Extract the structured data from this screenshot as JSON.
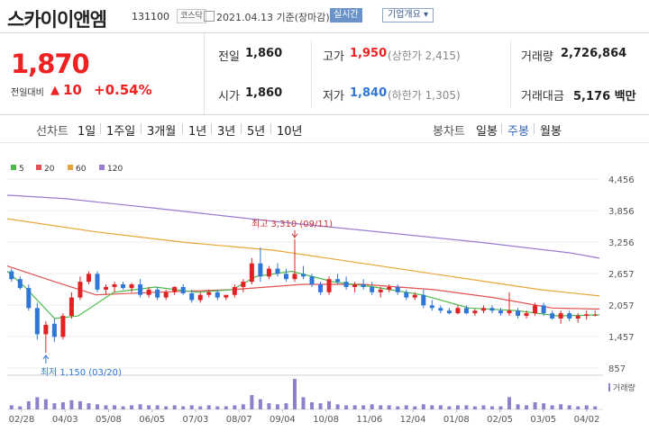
{
  "header": {
    "name": "스카이이앤엠",
    "code": "131100",
    "market": "코스닥",
    "date": "2021.04.13 기준(장마감)",
    "realtime_label": "실시간",
    "company_info_label": "기업개요 ▾"
  },
  "quote": {
    "price": "1,870",
    "change_label": "전일대비",
    "change_arrow": "▲",
    "change_value": "10",
    "change_pct": "+0.54%",
    "prev_close_label": "전일",
    "prev_close": "1,860",
    "open_label": "시가",
    "open": "1,860",
    "high_label": "고가",
    "high": "1,950",
    "upper_limit": "(상한가 2,415)",
    "low_label": "저가",
    "low": "1,840",
    "lower_limit": "(하한가 1,305)",
    "volume_label": "거래량",
    "volume": "2,726,864",
    "amount_label": "거래대금",
    "amount": "5,176 백만"
  },
  "period_tabs": {
    "label": "선차트",
    "items": [
      "1일",
      "1주일",
      "3개월",
      "1년",
      "3년",
      "5년",
      "10년"
    ]
  },
  "candle_tabs": {
    "label": "봉차트",
    "items": [
      "일봉",
      "주봉",
      "월봉"
    ],
    "selected": "주봉"
  },
  "colors": {
    "up": "#e02222",
    "down": "#2f77d6",
    "accent": "#6a93c9",
    "ma5": "#4cb94a",
    "ma20": "#e05050",
    "ma60": "#e8a636",
    "ma120": "#9a7bd0"
  },
  "chart_data": {
    "type": "candlestick",
    "legend": [
      {
        "name": "5",
        "color": "#4cb94a"
      },
      {
        "name": "20",
        "color": "#e05050"
      },
      {
        "name": "60",
        "color": "#e8a636"
      },
      {
        "name": "120",
        "color": "#9a7bd0"
      }
    ],
    "yticks": [
      "4,456",
      "3,856",
      "3,256",
      "2,657",
      "2,057",
      "1,457",
      "857"
    ],
    "ylim": [
      857,
      4456
    ],
    "xticks": [
      "02/28",
      "04/03",
      "05/08",
      "06/05",
      "07/03",
      "08/07",
      "09/04",
      "10/08",
      "11/06",
      "12/04",
      "01/08",
      "02/05",
      "03/05",
      "04/02"
    ],
    "annotations": {
      "high": "최고 3,310 (09/11)",
      "low": "최저 1,150 (03/20)"
    },
    "volume_label": "거래량",
    "candles": [
      [
        2700,
        2750,
        2500,
        2550
      ],
      [
        2550,
        2600,
        2350,
        2380
      ],
      [
        2380,
        2450,
        1950,
        2000
      ],
      [
        2000,
        2100,
        1400,
        1500
      ],
      [
        1500,
        1750,
        1150,
        1680
      ],
      [
        1700,
        1800,
        1350,
        1450
      ],
      [
        1450,
        1900,
        1400,
        1850
      ],
      [
        1850,
        2300,
        1800,
        2200
      ],
      [
        2200,
        2600,
        2150,
        2500
      ],
      [
        2500,
        2700,
        2450,
        2650
      ],
      [
        2650,
        2700,
        2300,
        2350
      ],
      [
        2350,
        2450,
        2250,
        2400
      ],
      [
        2400,
        2500,
        2300,
        2450
      ],
      [
        2450,
        2500,
        2350,
        2380
      ],
      [
        2380,
        2480,
        2300,
        2450
      ],
      [
        2450,
        2550,
        2200,
        2250
      ],
      [
        2250,
        2400,
        2200,
        2350
      ],
      [
        2350,
        2400,
        2150,
        2200
      ],
      [
        2200,
        2350,
        2150,
        2300
      ],
      [
        2300,
        2420,
        2250,
        2400
      ],
      [
        2400,
        2450,
        2250,
        2280
      ],
      [
        2280,
        2350,
        2100,
        2150
      ],
      [
        2150,
        2300,
        2100,
        2250
      ],
      [
        2250,
        2350,
        2200,
        2300
      ],
      [
        2300,
        2350,
        2150,
        2200
      ],
      [
        2200,
        2250,
        2150,
        2250
      ],
      [
        2250,
        2450,
        2200,
        2400
      ],
      [
        2400,
        2550,
        2300,
        2500
      ],
      [
        2500,
        2950,
        2450,
        2850
      ],
      [
        2850,
        3150,
        2500,
        2600
      ],
      [
        2600,
        2800,
        2550,
        2750
      ],
      [
        2750,
        2850,
        2600,
        2650
      ],
      [
        2650,
        2750,
        2500,
        2550
      ],
      [
        2550,
        3310,
        2500,
        2650
      ],
      [
        2650,
        2800,
        2550,
        2600
      ],
      [
        2600,
        2650,
        2400,
        2450
      ],
      [
        2450,
        2500,
        2250,
        2300
      ],
      [
        2300,
        2600,
        2250,
        2550
      ],
      [
        2550,
        2650,
        2450,
        2500
      ],
      [
        2500,
        2600,
        2350,
        2400
      ],
      [
        2400,
        2500,
        2300,
        2450
      ],
      [
        2450,
        2550,
        2350,
        2400
      ],
      [
        2400,
        2500,
        2250,
        2300
      ],
      [
        2300,
        2400,
        2200,
        2350
      ],
      [
        2350,
        2450,
        2300,
        2400
      ],
      [
        2400,
        2450,
        2250,
        2300
      ],
      [
        2300,
        2350,
        2150,
        2200
      ],
      [
        2200,
        2300,
        2150,
        2250
      ],
      [
        2250,
        2350,
        2000,
        2050
      ],
      [
        2050,
        2150,
        1950,
        2000
      ],
      [
        2000,
        2050,
        1900,
        1950
      ],
      [
        1950,
        2000,
        1880,
        1900
      ],
      [
        1900,
        2050,
        1880,
        2000
      ],
      [
        2000,
        2050,
        1880,
        1900
      ],
      [
        1900,
        1980,
        1850,
        1950
      ],
      [
        1950,
        2050,
        1900,
        2000
      ],
      [
        2000,
        2050,
        1900,
        1950
      ],
      [
        1950,
        2000,
        1850,
        1900
      ],
      [
        1900,
        2300,
        1850,
        1950
      ],
      [
        1950,
        2000,
        1800,
        1850
      ],
      [
        1850,
        1950,
        1800,
        1900
      ],
      [
        1900,
        2100,
        1850,
        2050
      ],
      [
        2050,
        2100,
        1850,
        1900
      ],
      [
        1900,
        1950,
        1780,
        1800
      ],
      [
        1800,
        1950,
        1700,
        1900
      ],
      [
        1900,
        1950,
        1750,
        1800
      ],
      [
        1800,
        1900,
        1720,
        1850
      ],
      [
        1850,
        1950,
        1780,
        1880
      ],
      [
        1870,
        1950,
        1840,
        1870
      ]
    ],
    "volume": [
      4,
      3,
      8,
      12,
      10,
      6,
      7,
      9,
      8,
      6,
      5,
      4,
      4,
      3,
      4,
      5,
      4,
      4,
      3,
      4,
      3,
      4,
      3,
      4,
      3,
      3,
      4,
      5,
      14,
      10,
      6,
      5,
      6,
      30,
      12,
      7,
      6,
      8,
      5,
      4,
      4,
      4,
      5,
      4,
      4,
      3,
      4,
      3,
      5,
      4,
      4,
      3,
      4,
      4,
      3,
      4,
      3,
      3,
      12,
      5,
      4,
      7,
      6,
      4,
      5,
      4,
      3,
      4,
      3
    ],
    "ma_lines": {
      "ma120": [
        [
          0,
          4150
        ],
        [
          0.1,
          4080
        ],
        [
          0.25,
          3900
        ],
        [
          0.45,
          3650
        ],
        [
          0.6,
          3480
        ],
        [
          0.8,
          3250
        ],
        [
          0.95,
          3050
        ],
        [
          1,
          2950
        ]
      ],
      "ma60": [
        [
          0,
          3700
        ],
        [
          0.15,
          3450
        ],
        [
          0.3,
          3250
        ],
        [
          0.45,
          3100
        ],
        [
          0.6,
          2850
        ],
        [
          0.75,
          2600
        ],
        [
          0.9,
          2350
        ],
        [
          1,
          2230
        ]
      ],
      "ma20": [
        [
          0,
          2800
        ],
        [
          0.08,
          2500
        ],
        [
          0.15,
          2250
        ],
        [
          0.25,
          2300
        ],
        [
          0.38,
          2350
        ],
        [
          0.5,
          2450
        ],
        [
          0.6,
          2450
        ],
        [
          0.72,
          2350
        ],
        [
          0.82,
          2200
        ],
        [
          0.92,
          2000
        ],
        [
          1,
          1980
        ]
      ],
      "ma5": [
        [
          0,
          2700
        ],
        [
          0.03,
          2400
        ],
        [
          0.08,
          1800
        ],
        [
          0.12,
          1850
        ],
        [
          0.18,
          2300
        ],
        [
          0.25,
          2400
        ],
        [
          0.32,
          2300
        ],
        [
          0.38,
          2350
        ],
        [
          0.42,
          2600
        ],
        [
          0.48,
          2700
        ],
        [
          0.55,
          2500
        ],
        [
          0.62,
          2400
        ],
        [
          0.7,
          2250
        ],
        [
          0.78,
          2000
        ],
        [
          0.86,
          1950
        ],
        [
          0.93,
          1850
        ],
        [
          1,
          1870
        ]
      ]
    }
  }
}
